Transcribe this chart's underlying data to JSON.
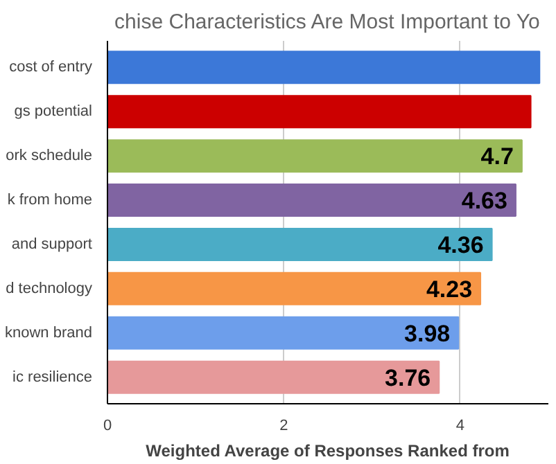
{
  "chart_data": {
    "type": "bar",
    "orientation": "horizontal",
    "title": "chise Characteristics Are Most Important to Yo",
    "xlabel": "Weighted Average of Responses Ranked from",
    "categories": [
      "cost of entry",
      "gs potential",
      "ork schedule",
      "k from home",
      "and support",
      "d technology",
      "known brand",
      "ic resilience"
    ],
    "values": [
      4.9,
      4.8,
      4.7,
      4.63,
      4.36,
      4.23,
      3.98,
      3.76
    ],
    "value_labels": [
      null,
      null,
      "4.7",
      "4.63",
      "4.36",
      "4.23",
      "3.98",
      "3.76"
    ],
    "colors": [
      "#3c78d8",
      "#cc0000",
      "#9bbb59",
      "#8064a2",
      "#4bacc6",
      "#f79646",
      "#6d9eeb",
      "#e6999a"
    ],
    "xlim": [
      0,
      5
    ],
    "xticks": [
      0,
      2,
      4
    ],
    "grid": "x"
  }
}
